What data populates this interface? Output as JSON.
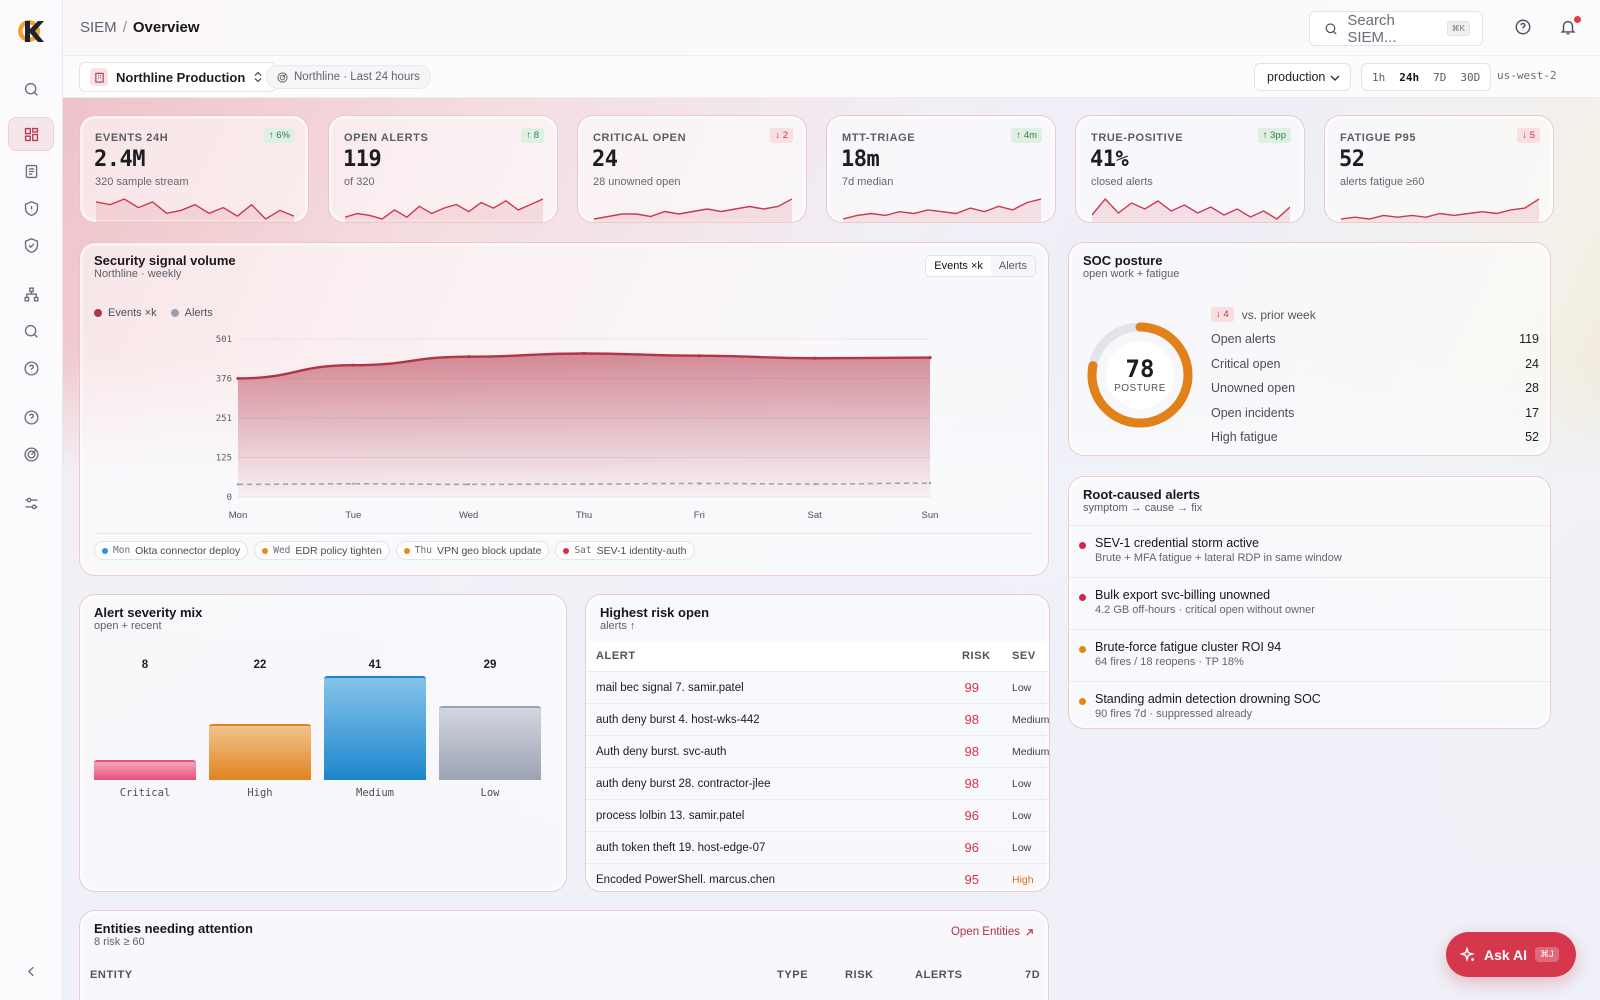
{
  "breadcrumb": {
    "root": "SIEM",
    "separator": "/",
    "current": "Overview"
  },
  "search": {
    "placeholder": "Search SIEM...",
    "shortcut": "⌘K"
  },
  "subbar": {
    "project": "Northline Production",
    "scope": "Northline · Last 24 hours",
    "environment": "production",
    "ranges": [
      "1h",
      "24h",
      "7D",
      "30D"
    ],
    "selected_range": "24h",
    "region": "us-west-2"
  },
  "kpis": [
    {
      "label": "EVENTS 24H",
      "value": "2.4M",
      "sub": "320 sample stream",
      "delta": "↑ 6%",
      "trend": "up",
      "series": [
        16,
        15,
        17,
        14,
        16,
        12,
        13,
        15,
        12,
        14,
        11,
        15,
        10,
        13,
        11
      ]
    },
    {
      "label": "OPEN ALERTS",
      "value": "119",
      "sub": "of 320",
      "delta": "↑ 8",
      "trend": "up",
      "series": [
        8,
        10,
        9,
        7,
        12,
        8,
        14,
        10,
        13,
        15,
        11,
        16,
        13,
        17,
        12,
        15,
        18
      ]
    },
    {
      "label": "CRITICAL OPEN",
      "value": "24",
      "sub": "28 unowned open",
      "delta": "↓ 2",
      "trend": "down",
      "series": [
        6,
        7,
        8,
        8,
        7,
        9,
        8,
        9,
        10,
        9,
        10,
        11,
        10,
        11,
        14
      ]
    },
    {
      "label": "MTT-TRIAGE",
      "value": "18m",
      "sub": "7d median",
      "delta": "↑ 4m",
      "trend": "up",
      "series": [
        7,
        9,
        10,
        9,
        11,
        10,
        12,
        11,
        10,
        13,
        11,
        14,
        12,
        16,
        18
      ]
    },
    {
      "label": "TRUE-POSITIVE",
      "value": "41%",
      "sub": "closed alerts",
      "delta": "↑ 3pp",
      "trend": "up",
      "series": [
        10,
        18,
        11,
        16,
        13,
        17,
        12,
        15,
        11,
        14,
        10,
        13,
        9,
        12,
        8,
        14
      ]
    },
    {
      "label": "FATIGUE P95",
      "value": "52",
      "sub": "alerts fatigue ≥60",
      "delta": "↓ 5",
      "trend": "down",
      "series": [
        8,
        9,
        8,
        10,
        9,
        10,
        9,
        11,
        10,
        11,
        12,
        11,
        13,
        14,
        19
      ]
    }
  ],
  "volume": {
    "title": "Security signal volume",
    "subtitle": "Northline · weekly",
    "tabs": [
      "Events ×k",
      "Alerts"
    ],
    "selected_tab": "Events ×k",
    "legend": [
      "Events ×k",
      "Alerts"
    ],
    "annotations": [
      {
        "day": "Mon",
        "text": "Okta connector deploy",
        "color": "#2f8fd8"
      },
      {
        "day": "Wed",
        "text": "EDR policy tighten",
        "color": "#e48a1c"
      },
      {
        "day": "Thu",
        "text": "VPN geo block update",
        "color": "#e48a1c"
      },
      {
        "day": "Sat",
        "text": "SEV-1 identity-auth",
        "color": "#d72f4b"
      }
    ]
  },
  "chart_data": {
    "type": "area",
    "x": [
      "Mon",
      "Tue",
      "Wed",
      "Thu",
      "Fri",
      "Sat",
      "Sun"
    ],
    "yticks": [
      "501",
      "376",
      "251",
      "125",
      "0"
    ],
    "ylim": [
      0,
      501
    ],
    "series": [
      {
        "name": "Events ×k",
        "values": [
          376,
          418,
          445,
          455,
          448,
          440,
          442
        ],
        "color": "#b33447"
      },
      {
        "name": "Alerts",
        "values": [
          40,
          42,
          40,
          41,
          43,
          41,
          44
        ],
        "color": "#9aa0ae"
      }
    ]
  },
  "posture": {
    "title": "SOC posture",
    "subtitle": "open work + fatigue",
    "score": "78",
    "score_label": "POSTURE",
    "score_fraction": 0.78,
    "delta": "↓ 4",
    "delta_text": "vs. prior week",
    "stats": [
      {
        "label": "Open alerts",
        "value": "119"
      },
      {
        "label": "Critical open",
        "value": "24"
      },
      {
        "label": "Unowned open",
        "value": "28"
      },
      {
        "label": "Open incidents",
        "value": "17"
      },
      {
        "label": "High fatigue",
        "value": "52"
      }
    ]
  },
  "rootcause": {
    "title": "Root-caused alerts",
    "subtitle": "symptom → cause → fix",
    "items": [
      {
        "title": "SEV-1 credential storm active",
        "detail": "Brute + MFA fatigue + lateral RDP in same window",
        "color": "#d7244a"
      },
      {
        "title": "Bulk export svc-billing unowned",
        "detail": "4.2 GB off-hours · critical open without owner",
        "color": "#d7244a"
      },
      {
        "title": "Brute-force fatigue cluster ROI 94",
        "detail": "64 fires / 18 reopens · TP 18%",
        "color": "#e38512"
      },
      {
        "title": "Standing admin detection drowning SOC",
        "detail": "90 fires 7d · suppressed already",
        "color": "#e38512"
      }
    ]
  },
  "severity": {
    "title": "Alert severity mix",
    "subtitle": "open + recent",
    "bars": [
      {
        "label": "Critical",
        "value": "8",
        "n": 8
      },
      {
        "label": "High",
        "value": "22",
        "n": 22
      },
      {
        "label": "Medium",
        "value": "41",
        "n": 41
      },
      {
        "label": "Low",
        "value": "29",
        "n": 29
      }
    ]
  },
  "risk": {
    "title": "Highest risk open",
    "subtitle": "alerts ↑",
    "columns": [
      "ALERT",
      "RISK",
      "SEV"
    ],
    "rows": [
      {
        "alert": "mail bec signal 7. samir.patel",
        "risk": "99",
        "sev": "Low"
      },
      {
        "alert": "auth deny burst 4. host-wks-442",
        "risk": "98",
        "sev": "Medium"
      },
      {
        "alert": "Auth deny burst. svc-auth",
        "risk": "98",
        "sev": "Medium"
      },
      {
        "alert": "auth deny burst 28. contractor-jlee",
        "risk": "98",
        "sev": "Low"
      },
      {
        "alert": "process lolbin 13. samir.patel",
        "risk": "96",
        "sev": "Low"
      },
      {
        "alert": "auth token theft 19. host-edge-07",
        "risk": "96",
        "sev": "Low"
      },
      {
        "alert": "Encoded PowerShell. marcus.chen",
        "risk": "95",
        "sev": "High"
      }
    ]
  },
  "entities": {
    "title": "Entities needing attention",
    "subtitle": "8 risk ≥ 60",
    "link": "Open Entities",
    "columns": [
      "ENTITY",
      "TYPE",
      "RISK",
      "ALERTS",
      "7D"
    ]
  },
  "askai": {
    "label": "Ask AI",
    "shortcut": "⌘J"
  }
}
